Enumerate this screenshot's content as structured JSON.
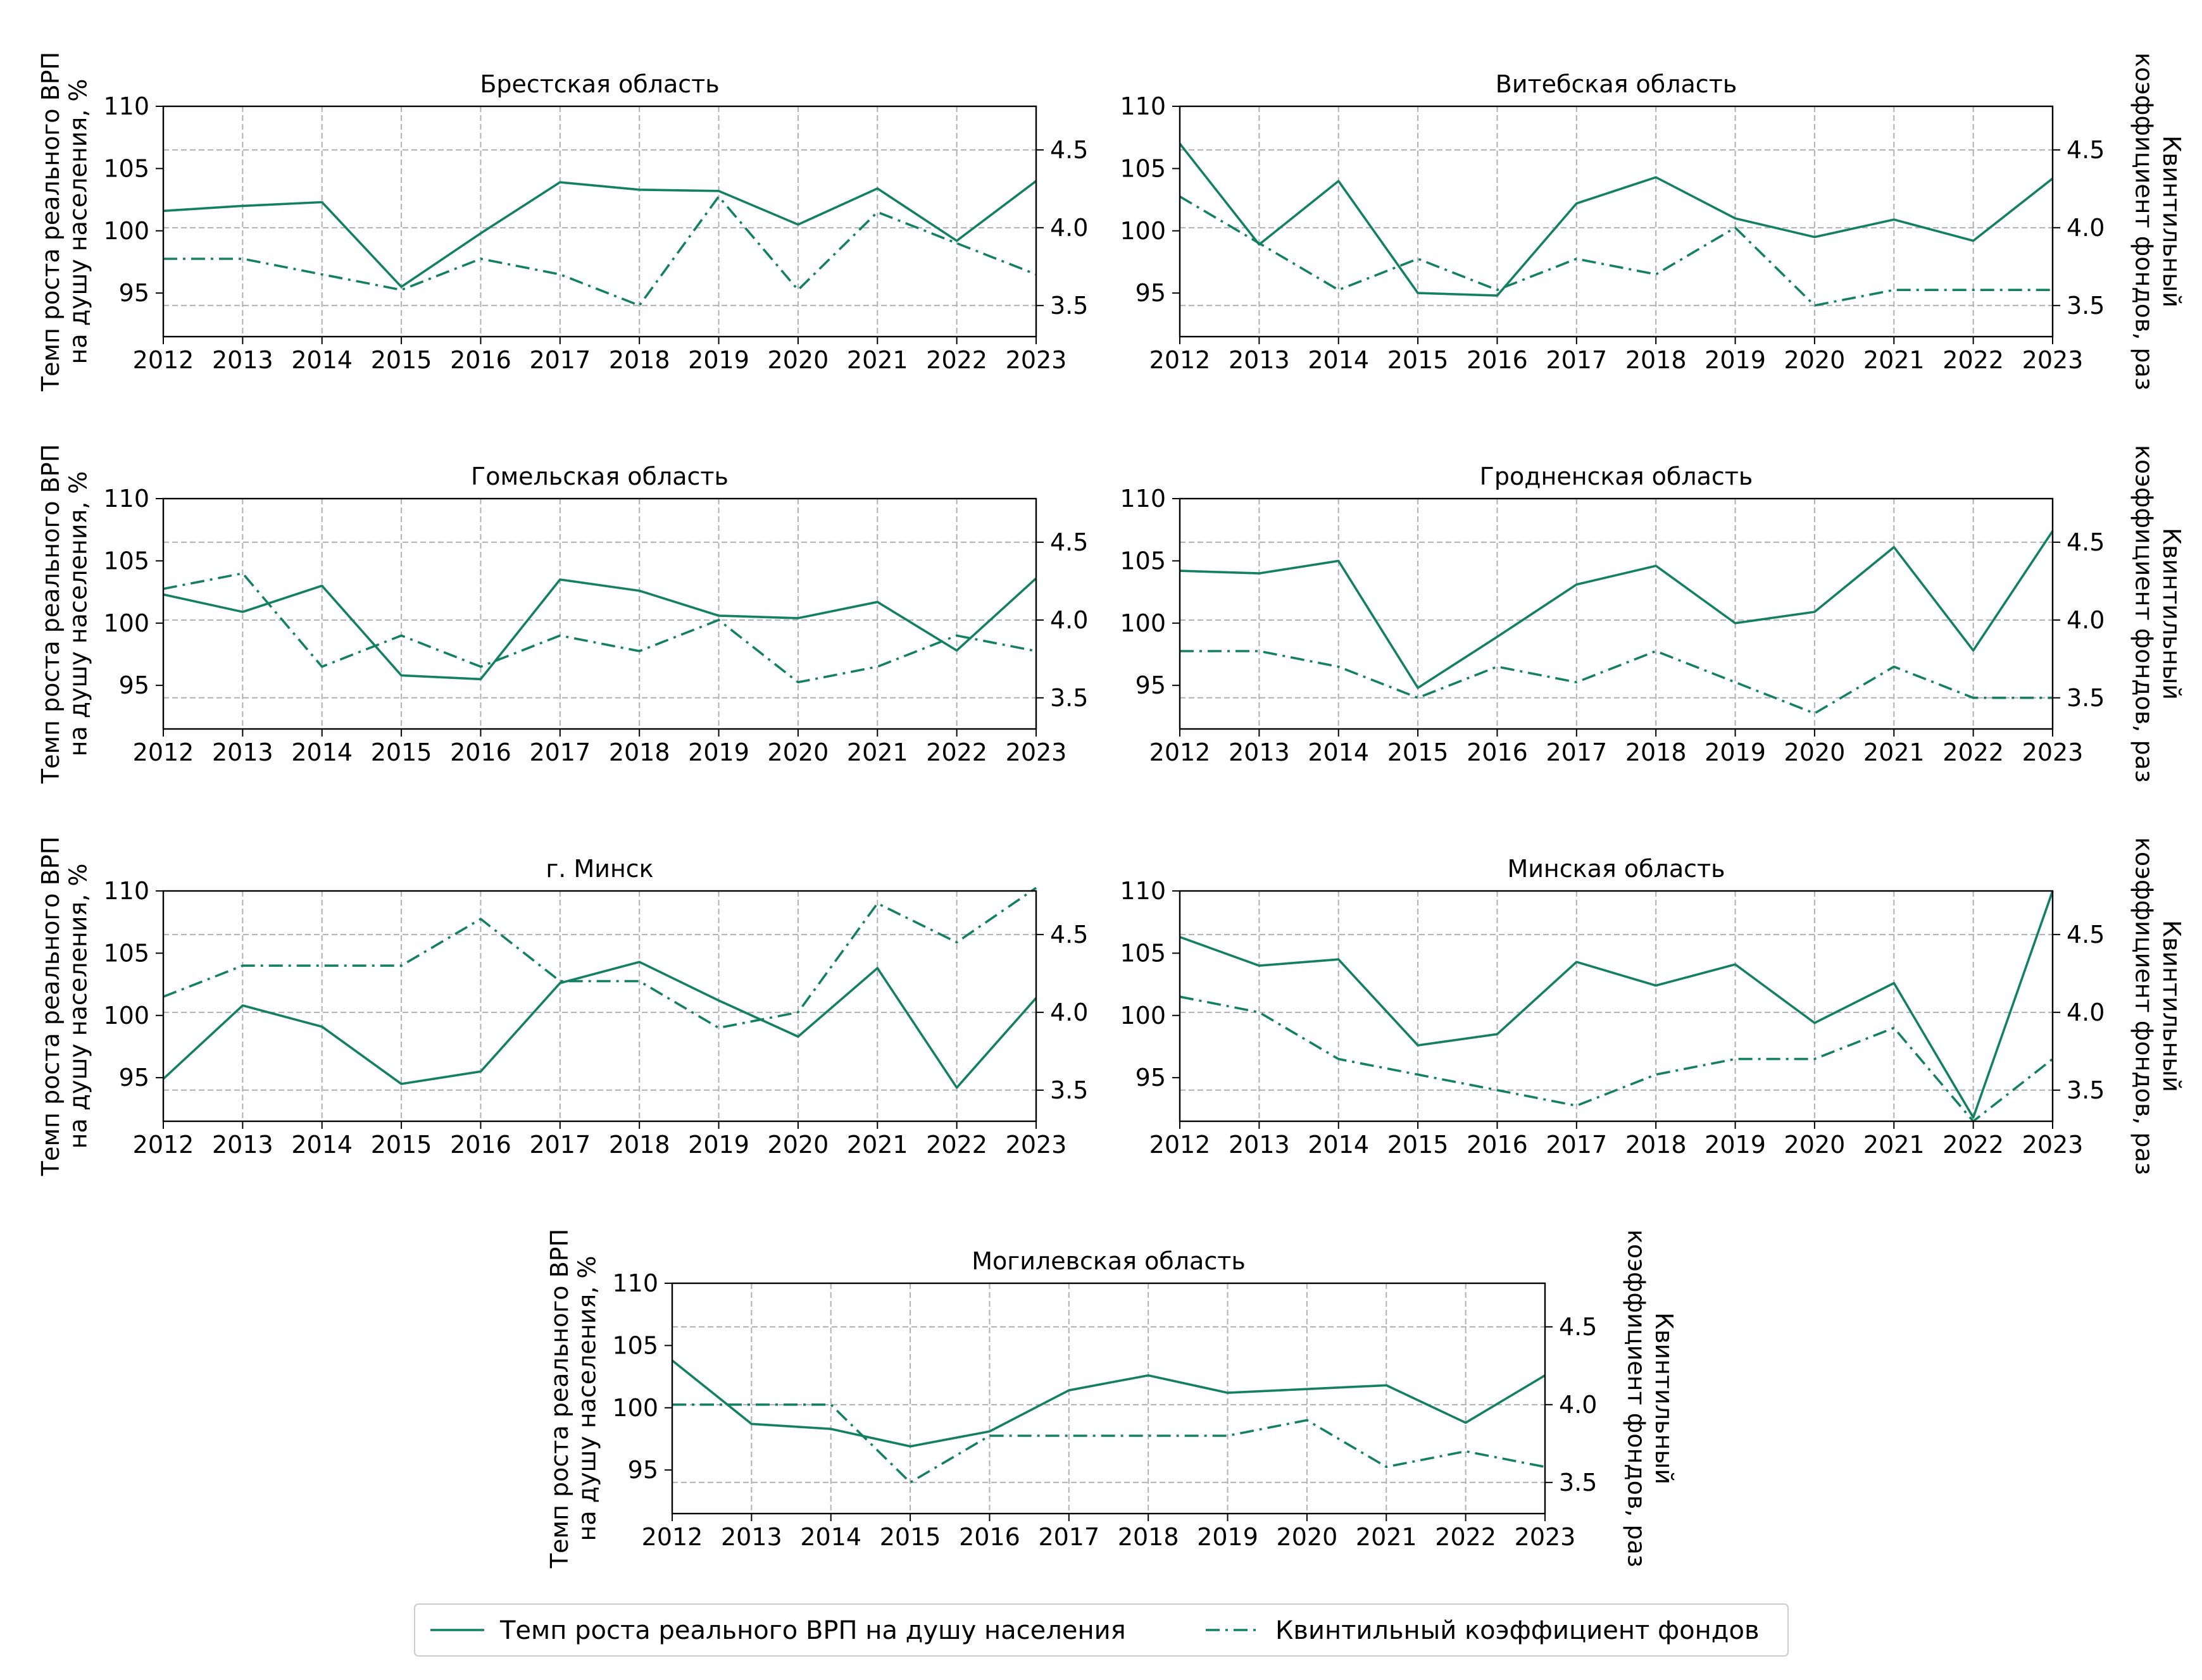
{
  "colors": {
    "series": "#138062",
    "grid": "#b0b0b0",
    "axis": "#000000"
  },
  "axis_labels": {
    "left": [
      "Темп роста реального ВРП",
      "на душу населения, %"
    ],
    "right": [
      "Квинтильный",
      "коэффициент фондов, раз"
    ]
  },
  "legend": {
    "gdp": "Темп роста реального ВРП на душу населения",
    "quintile": "Квинтильный коэффициент фондов"
  },
  "chart_data": [
    {
      "type": "line",
      "title": "Брестская область",
      "x": [
        2012,
        2013,
        2014,
        2015,
        2016,
        2017,
        2018,
        2019,
        2020,
        2021,
        2022,
        2023
      ],
      "xlim": [
        2012,
        2023
      ],
      "ylim_left": [
        91.5,
        110
      ],
      "ylim_right": [
        3.3,
        4.78
      ],
      "left_ticks": [
        95,
        100,
        105,
        110
      ],
      "right_ticks": [
        3.5,
        4.0,
        4.5
      ],
      "grid": true,
      "series": [
        {
          "name": "Темп роста реального ВРП на душу населения",
          "axis": "left",
          "style": "solid",
          "values": [
            101.6,
            102.0,
            102.3,
            95.5,
            99.8,
            103.9,
            103.3,
            103.2,
            100.5,
            103.4,
            99.2,
            104.0
          ]
        },
        {
          "name": "Квинтильный коэффициент фондов",
          "axis": "right",
          "style": "dashdot",
          "values": [
            3.8,
            3.8,
            3.7,
            3.6,
            3.8,
            3.7,
            3.5,
            4.2,
            3.6,
            4.1,
            3.9,
            3.7
          ]
        }
      ]
    },
    {
      "type": "line",
      "title": "Витебская область",
      "x": [
        2012,
        2013,
        2014,
        2015,
        2016,
        2017,
        2018,
        2019,
        2020,
        2021,
        2022,
        2023
      ],
      "xlim": [
        2012,
        2023
      ],
      "ylim_left": [
        91.5,
        110
      ],
      "ylim_right": [
        3.3,
        4.78
      ],
      "left_ticks": [
        95,
        100,
        105,
        110
      ],
      "right_ticks": [
        3.5,
        4.0,
        4.5
      ],
      "grid": true,
      "series": [
        {
          "name": "Темп роста реального ВРП на душу населения",
          "axis": "left",
          "style": "solid",
          "values": [
            107.0,
            98.9,
            104.0,
            95.0,
            94.8,
            102.2,
            104.3,
            101.0,
            99.5,
            100.9,
            99.2,
            104.2
          ]
        },
        {
          "name": "Квинтильный коэффициент фондов",
          "axis": "right",
          "style": "dashdot",
          "values": [
            4.2,
            3.9,
            3.6,
            3.8,
            3.6,
            3.8,
            3.7,
            4.0,
            3.5,
            3.6,
            3.6,
            3.6
          ]
        }
      ]
    },
    {
      "type": "line",
      "title": "Гомельская область",
      "x": [
        2012,
        2013,
        2014,
        2015,
        2016,
        2017,
        2018,
        2019,
        2020,
        2021,
        2022,
        2023
      ],
      "xlim": [
        2012,
        2023
      ],
      "ylim_left": [
        91.5,
        110
      ],
      "ylim_right": [
        3.3,
        4.78
      ],
      "left_ticks": [
        95,
        100,
        105,
        110
      ],
      "right_ticks": [
        3.5,
        4.0,
        4.5
      ],
      "grid": true,
      "series": [
        {
          "name": "Темп роста реального ВРП на душу населения",
          "axis": "left",
          "style": "solid",
          "values": [
            102.3,
            100.9,
            103.0,
            95.8,
            95.5,
            103.5,
            102.6,
            100.6,
            100.4,
            101.7,
            97.8,
            103.6
          ]
        },
        {
          "name": "Квинтильный коэффициент фондов",
          "axis": "right",
          "style": "dashdot",
          "values": [
            4.2,
            4.3,
            3.7,
            3.9,
            3.7,
            3.9,
            3.8,
            4.0,
            3.6,
            3.7,
            3.9,
            3.8
          ]
        }
      ]
    },
    {
      "type": "line",
      "title": "Гродненская область",
      "x": [
        2012,
        2013,
        2014,
        2015,
        2016,
        2017,
        2018,
        2019,
        2020,
        2021,
        2022,
        2023
      ],
      "xlim": [
        2012,
        2023
      ],
      "ylim_left": [
        91.5,
        110
      ],
      "ylim_right": [
        3.3,
        4.78
      ],
      "left_ticks": [
        95,
        100,
        105,
        110
      ],
      "right_ticks": [
        3.5,
        4.0,
        4.5
      ],
      "grid": true,
      "series": [
        {
          "name": "Темп роста реального ВРП на душу населения",
          "axis": "left",
          "style": "solid",
          "values": [
            104.2,
            104.0,
            105.0,
            94.8,
            98.9,
            103.1,
            104.6,
            100.0,
            100.9,
            106.1,
            97.8,
            107.4
          ]
        },
        {
          "name": "Квинтильный коэффициент фондов",
          "axis": "right",
          "style": "dashdot",
          "values": [
            3.8,
            3.8,
            3.7,
            3.5,
            3.7,
            3.6,
            3.8,
            3.6,
            3.4,
            3.7,
            3.5,
            3.5
          ]
        }
      ]
    },
    {
      "type": "line",
      "title": "г. Минск",
      "x": [
        2012,
        2013,
        2014,
        2015,
        2016,
        2017,
        2018,
        2019,
        2020,
        2021,
        2022,
        2023
      ],
      "xlim": [
        2012,
        2023
      ],
      "ylim_left": [
        91.5,
        110
      ],
      "ylim_right": [
        3.3,
        4.78
      ],
      "left_ticks": [
        95,
        100,
        105,
        110
      ],
      "right_ticks": [
        3.5,
        4.0,
        4.5
      ],
      "grid": true,
      "series": [
        {
          "name": "Темп роста реального ВРП на душу населения",
          "axis": "left",
          "style": "solid",
          "values": [
            94.9,
            100.8,
            99.1,
            94.5,
            95.5,
            102.6,
            104.3,
            101.2,
            98.3,
            103.8,
            94.2,
            101.4
          ]
        },
        {
          "name": "Квинтильный коэффициент фондов",
          "axis": "right",
          "style": "dashdot",
          "values": [
            4.1,
            4.3,
            4.3,
            4.3,
            4.6,
            4.2,
            4.2,
            3.9,
            4.0,
            4.7,
            4.45,
            4.8
          ]
        }
      ]
    },
    {
      "type": "line",
      "title": "Минская область",
      "x": [
        2012,
        2013,
        2014,
        2015,
        2016,
        2017,
        2018,
        2019,
        2020,
        2021,
        2022,
        2023
      ],
      "xlim": [
        2012,
        2023
      ],
      "ylim_left": [
        91.5,
        110
      ],
      "ylim_right": [
        3.3,
        4.78
      ],
      "left_ticks": [
        95,
        100,
        105,
        110
      ],
      "right_ticks": [
        3.5,
        4.0,
        4.5
      ],
      "grid": true,
      "series": [
        {
          "name": "Темп роста реального ВРП на душу населения",
          "axis": "left",
          "style": "solid",
          "values": [
            106.3,
            104.0,
            104.5,
            97.6,
            98.5,
            104.3,
            102.4,
            104.1,
            99.4,
            102.6,
            91.8,
            110.0
          ]
        },
        {
          "name": "Квинтильный коэффициент фондов",
          "axis": "right",
          "style": "dashdot",
          "values": [
            4.1,
            4.0,
            3.7,
            3.6,
            3.5,
            3.4,
            3.6,
            3.7,
            3.7,
            3.9,
            3.3,
            3.7
          ]
        }
      ]
    },
    {
      "type": "line",
      "title": "Могилевская область",
      "x": [
        2012,
        2013,
        2014,
        2015,
        2016,
        2017,
        2018,
        2019,
        2020,
        2021,
        2022,
        2023
      ],
      "xlim": [
        2012,
        2023
      ],
      "ylim_left": [
        91.5,
        110
      ],
      "ylim_right": [
        3.3,
        4.78
      ],
      "left_ticks": [
        95,
        100,
        105,
        110
      ],
      "right_ticks": [
        3.5,
        4.0,
        4.5
      ],
      "grid": true,
      "series": [
        {
          "name": "Темп роста реального ВРП на душу населения",
          "axis": "left",
          "style": "solid",
          "values": [
            103.8,
            98.7,
            98.3,
            96.9,
            98.1,
            101.4,
            102.6,
            101.2,
            101.5,
            101.8,
            98.8,
            102.6
          ]
        },
        {
          "name": "Квинтильный коэффициент фондов",
          "axis": "right",
          "style": "dashdot",
          "values": [
            4.0,
            4.0,
            4.0,
            3.5,
            3.8,
            3.8,
            3.8,
            3.8,
            3.9,
            3.6,
            3.7,
            3.6
          ]
        }
      ]
    }
  ]
}
